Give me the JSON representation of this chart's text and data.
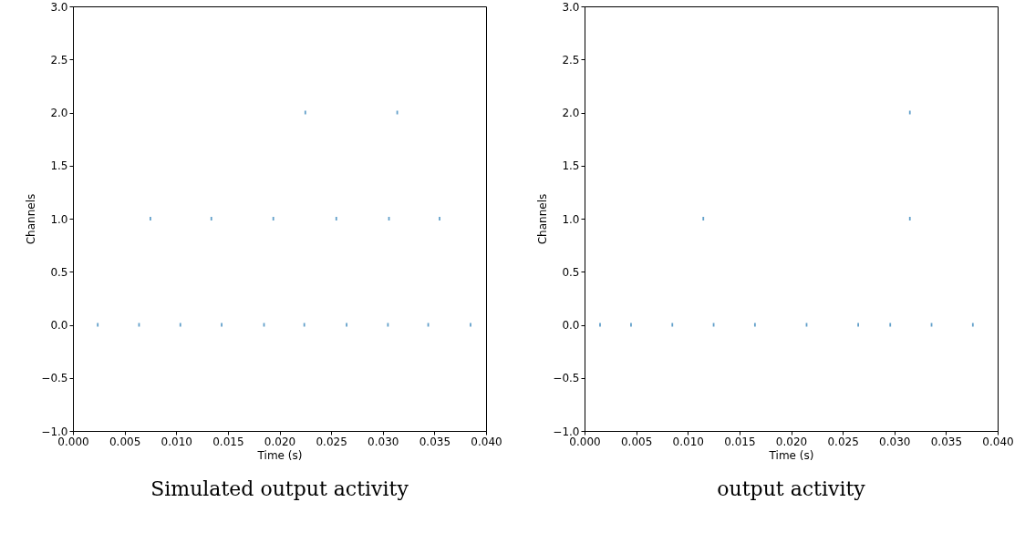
{
  "chart_data": [
    {
      "type": "scatter",
      "title": "Simulated output activity",
      "xlabel": "Time (s)",
      "ylabel": "Channels",
      "grid": false,
      "xlim": [
        0,
        0.04
      ],
      "xticks": [
        {
          "value": 0,
          "label": "0.000"
        },
        {
          "value": 0.005,
          "label": "0.005"
        },
        {
          "value": 0.01,
          "label": "0.010"
        },
        {
          "value": 0.015,
          "label": "0.015"
        },
        {
          "value": 0.02,
          "label": "0.020"
        },
        {
          "value": 0.025,
          "label": "0.025"
        },
        {
          "value": 0.03,
          "label": "0.030"
        },
        {
          "value": 0.035,
          "label": "0.035"
        },
        {
          "value": 0.04,
          "label": "0.040"
        }
      ],
      "ylim": [
        -1,
        3
      ],
      "yticks": [
        {
          "value": -1,
          "label": "−1.0"
        },
        {
          "value": -0.5,
          "label": "−0.5"
        },
        {
          "value": 0,
          "label": "0.0"
        },
        {
          "value": 0.5,
          "label": "0.5"
        },
        {
          "value": 1,
          "label": "1.0"
        },
        {
          "value": 1.5,
          "label": "1.5"
        },
        {
          "value": 2,
          "label": "2.0"
        },
        {
          "value": 2.5,
          "label": "2.5"
        },
        {
          "value": 3,
          "label": "3.0"
        }
      ],
      "series": [
        {
          "color": "#1f77b4",
          "x": [
            0.0024,
            0.0064,
            0.0104,
            0.0144,
            0.0185,
            0.0224,
            0.0265,
            0.0305,
            0.0344,
            0.0385
          ],
          "values": [
            0,
            0,
            0,
            0,
            0,
            0,
            0,
            0,
            0,
            0
          ]
        },
        {
          "color": "#1f77b4",
          "x": [
            0.0075,
            0.0134,
            0.0194,
            0.0255,
            0.0306,
            0.0355
          ],
          "values": [
            1,
            1,
            1,
            1,
            1,
            1
          ]
        },
        {
          "color": "#1f77b4",
          "x": [
            0.0225,
            0.0314
          ],
          "values": [
            2,
            2
          ]
        }
      ]
    },
    {
      "type": "scatter",
      "title": "output activity",
      "xlabel": "Time (s)",
      "ylabel": "Channels",
      "grid": false,
      "xlim": [
        0,
        0.04
      ],
      "xticks": [
        {
          "value": 0,
          "label": "0.000"
        },
        {
          "value": 0.005,
          "label": "0.005"
        },
        {
          "value": 0.01,
          "label": "0.010"
        },
        {
          "value": 0.015,
          "label": "0.015"
        },
        {
          "value": 0.02,
          "label": "0.020"
        },
        {
          "value": 0.025,
          "label": "0.025"
        },
        {
          "value": 0.03,
          "label": "0.030"
        },
        {
          "value": 0.035,
          "label": "0.035"
        },
        {
          "value": 0.04,
          "label": "0.040"
        }
      ],
      "ylim": [
        -1,
        3
      ],
      "yticks": [
        {
          "value": -1,
          "label": "−1.0"
        },
        {
          "value": -0.5,
          "label": "−0.5"
        },
        {
          "value": 0,
          "label": "0.0"
        },
        {
          "value": 0.5,
          "label": "0.5"
        },
        {
          "value": 1,
          "label": "1.0"
        },
        {
          "value": 1.5,
          "label": "1.5"
        },
        {
          "value": 2,
          "label": "2.0"
        },
        {
          "value": 2.5,
          "label": "2.5"
        },
        {
          "value": 3,
          "label": "3.0"
        }
      ],
      "series": [
        {
          "color": "#1f77b4",
          "x": [
            0.0015,
            0.0045,
            0.0085,
            0.0125,
            0.0165,
            0.0215,
            0.0265,
            0.0296,
            0.0336,
            0.0376
          ],
          "values": [
            0,
            0,
            0,
            0,
            0,
            0,
            0,
            0,
            0,
            0
          ]
        },
        {
          "color": "#1f77b4",
          "x": [
            0.0115,
            0.0315
          ],
          "values": [
            1,
            1
          ]
        },
        {
          "color": "#1f77b4",
          "x": [
            0.0315
          ],
          "values": [
            2
          ]
        }
      ]
    }
  ]
}
